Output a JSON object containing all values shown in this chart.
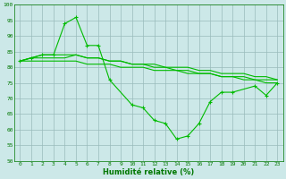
{
  "xlabel": "Humidité relative (%)",
  "background_color": "#cce8e8",
  "grid_color": "#99bbbb",
  "line_color": "#00bb00",
  "xlim": [
    -0.5,
    23.5
  ],
  "ylim": [
    50,
    100
  ],
  "yticks": [
    50,
    55,
    60,
    65,
    70,
    75,
    80,
    85,
    90,
    95,
    100
  ],
  "xticks": [
    0,
    1,
    2,
    3,
    4,
    5,
    6,
    7,
    8,
    9,
    10,
    11,
    12,
    13,
    14,
    15,
    16,
    17,
    18,
    19,
    20,
    21,
    22,
    23
  ],
  "series": [
    {
      "x": [
        0,
        1,
        2,
        3,
        4,
        5,
        6,
        7,
        8,
        10,
        11,
        12,
        13,
        14,
        15,
        16,
        17,
        18,
        19,
        21,
        22,
        23
      ],
      "y": [
        82,
        83,
        84,
        84,
        94,
        96,
        87,
        87,
        76,
        68,
        67,
        63,
        62,
        57,
        58,
        62,
        69,
        72,
        72,
        74,
        71,
        75
      ],
      "marker": true
    },
    {
      "x": [
        0,
        1,
        2,
        3,
        4,
        5,
        6,
        7,
        8,
        9,
        10,
        11,
        12,
        13,
        14,
        15,
        16,
        17,
        18,
        19,
        20,
        21,
        22,
        23
      ],
      "y": [
        82,
        83,
        84,
        84,
        84,
        84,
        83,
        83,
        82,
        82,
        81,
        81,
        80,
        80,
        79,
        79,
        78,
        78,
        77,
        77,
        76,
        76,
        75,
        75
      ],
      "marker": false
    },
    {
      "x": [
        0,
        1,
        2,
        3,
        4,
        5,
        6,
        7,
        8,
        9,
        10,
        11,
        12,
        13,
        14,
        15,
        16,
        17,
        18,
        19,
        20,
        21,
        22,
        23
      ],
      "y": [
        82,
        83,
        83,
        83,
        83,
        84,
        83,
        83,
        82,
        82,
        81,
        81,
        81,
        80,
        80,
        80,
        79,
        79,
        78,
        78,
        78,
        77,
        77,
        76
      ],
      "marker": false
    },
    {
      "x": [
        0,
        1,
        2,
        3,
        4,
        5,
        6,
        7,
        8,
        9,
        10,
        11,
        12,
        13,
        14,
        15,
        16,
        17,
        18,
        19,
        20,
        21,
        22,
        23
      ],
      "y": [
        82,
        82,
        82,
        82,
        82,
        82,
        81,
        81,
        81,
        80,
        80,
        80,
        79,
        79,
        79,
        78,
        78,
        78,
        77,
        77,
        77,
        76,
        76,
        76
      ],
      "marker": false
    }
  ]
}
